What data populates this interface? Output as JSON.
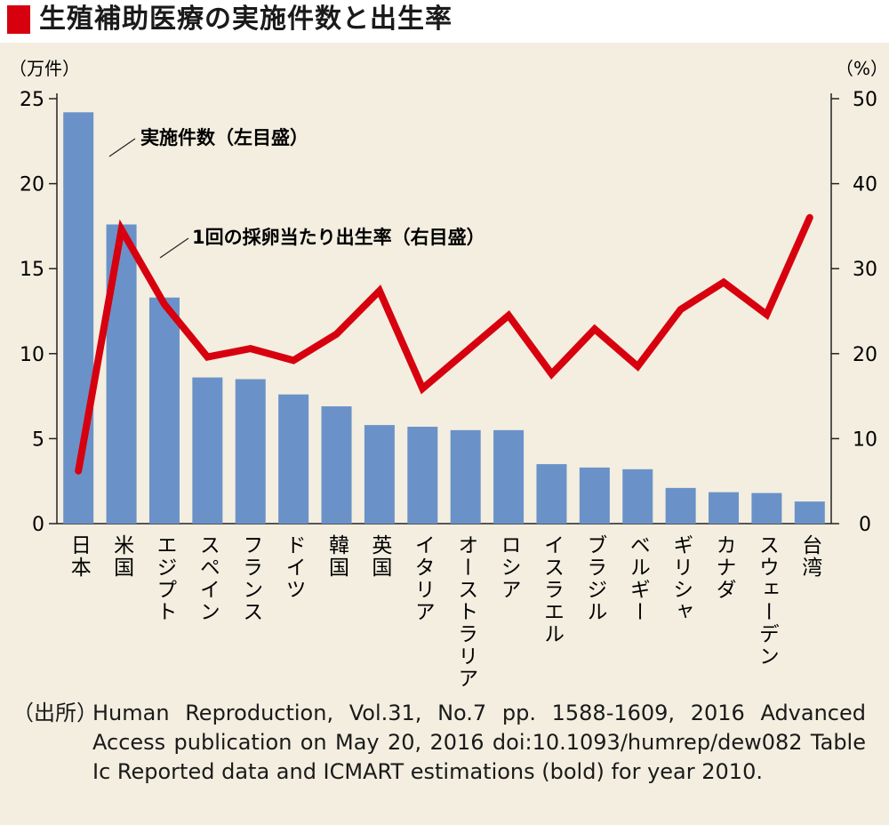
{
  "title": "生殖補助医療の実施件数と出生率",
  "source": {
    "prefix": "（出所）",
    "text": "Human Reproduction, Vol.31, No.7 pp. 1588-1609, 2016 Advanced Access publication on May 20, 2016 doi:10.1093/humrep/dew082 Table Ic Reported data and ICMART estimations (bold) for year 2010."
  },
  "colors": {
    "bar": "#6a92c8",
    "line": "#d7000f",
    "title_marker": "#d7000f",
    "background": "#f3eee0"
  },
  "chart_data": {
    "type": "bar+line",
    "categories": [
      "日本",
      "米国",
      "エジプト",
      "スペイン",
      "フランス",
      "ドイツ",
      "韓国",
      "英国",
      "イタリア",
      "オーストラリア",
      "ロシア",
      "イスラエル",
      "ブラジル",
      "ベルギー",
      "ギリシャ",
      "カナダ",
      "スウェーデン",
      "台湾"
    ],
    "left_axis": {
      "unit": "（万件）",
      "range": [
        0,
        25
      ],
      "ticks": [
        0,
        5,
        10,
        15,
        20,
        25
      ]
    },
    "right_axis": {
      "unit": "（%）",
      "range": [
        0,
        50
      ],
      "ticks": [
        0,
        10,
        20,
        30,
        40,
        50
      ]
    },
    "series": [
      {
        "name": "実施件数（左目盛）",
        "type": "bar",
        "axis": "left",
        "values": [
          24.2,
          17.6,
          13.3,
          8.6,
          8.5,
          7.6,
          6.9,
          5.8,
          5.7,
          5.5,
          5.5,
          3.5,
          3.3,
          3.2,
          2.1,
          1.85,
          1.8,
          1.3
        ]
      },
      {
        "name": "1回の採卵当たり出生率（右目盛）",
        "type": "line",
        "axis": "right",
        "values": [
          6.2,
          34.6,
          25.8,
          19.6,
          20.6,
          19.2,
          22.3,
          27.4,
          15.9,
          20.2,
          24.5,
          17.6,
          22.9,
          18.5,
          25.2,
          28.4,
          24.6,
          36.0
        ]
      }
    ],
    "grid": false
  }
}
